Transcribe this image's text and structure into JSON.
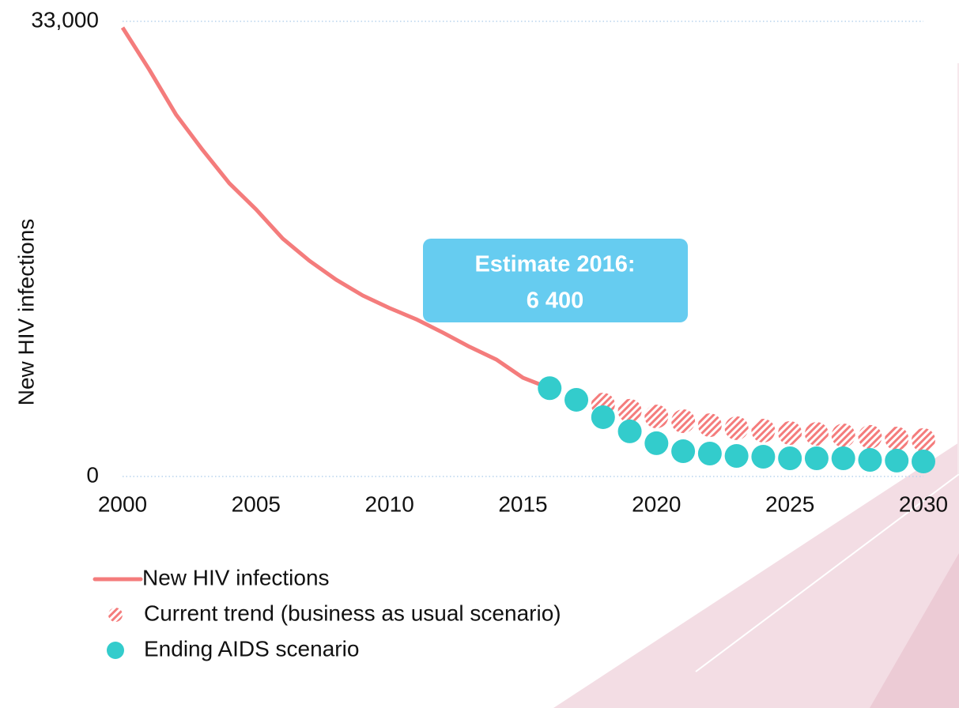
{
  "chart_data": {
    "type": "line",
    "y_label": "New HIV infections",
    "x": [
      2000,
      2001,
      2002,
      2003,
      2004,
      2005,
      2006,
      2007,
      2008,
      2009,
      2010,
      2011,
      2012,
      2013,
      2014,
      2015,
      2016,
      2017,
      2018,
      2019,
      2020,
      2021,
      2022,
      2023,
      2024,
      2025,
      2026,
      2027,
      2028,
      2029,
      2030
    ],
    "series": [
      {
        "name": "New HIV infections",
        "color": "#f47c7c",
        "style": "line",
        "values": [
          32550,
          29500,
          26250,
          23670,
          21260,
          19370,
          17250,
          15640,
          14270,
          13120,
          12210,
          11400,
          10430,
          9400,
          8480,
          7160,
          6400,
          null,
          null,
          null,
          null,
          null,
          null,
          null,
          null,
          null,
          null,
          null,
          null,
          null,
          null
        ]
      },
      {
        "name": "Current trend (business as usual scenario)",
        "color": "#f47c7c",
        "style": "hatched-dot",
        "values": [
          null,
          null,
          null,
          null,
          null,
          null,
          null,
          null,
          null,
          null,
          null,
          null,
          null,
          null,
          null,
          null,
          null,
          null,
          5210,
          4760,
          4350,
          4010,
          3720,
          3500,
          3320,
          3150,
          3090,
          2980,
          2870,
          2750,
          2640
        ]
      },
      {
        "name": "Ending AIDS scenario",
        "color": "#33cccc",
        "style": "dot",
        "values": [
          null,
          null,
          null,
          null,
          null,
          null,
          null,
          null,
          null,
          null,
          null,
          null,
          null,
          null,
          null,
          null,
          6400,
          5560,
          4300,
          3270,
          2410,
          1830,
          1660,
          1490,
          1430,
          1320,
          1320,
          1320,
          1200,
          1150,
          1090
        ]
      }
    ],
    "xlim": [
      2000,
      2030
    ],
    "xticks": [
      2000,
      2005,
      2010,
      2015,
      2020,
      2025,
      2030
    ],
    "ylim": [
      0,
      33000
    ],
    "yticks": [
      0,
      {
        "value": 33000,
        "label": "33,000"
      }
    ],
    "grid": true,
    "annotation": {
      "lines": [
        "Estimate 2016:",
        "6 400"
      ],
      "color": "#66ccf0"
    }
  }
}
